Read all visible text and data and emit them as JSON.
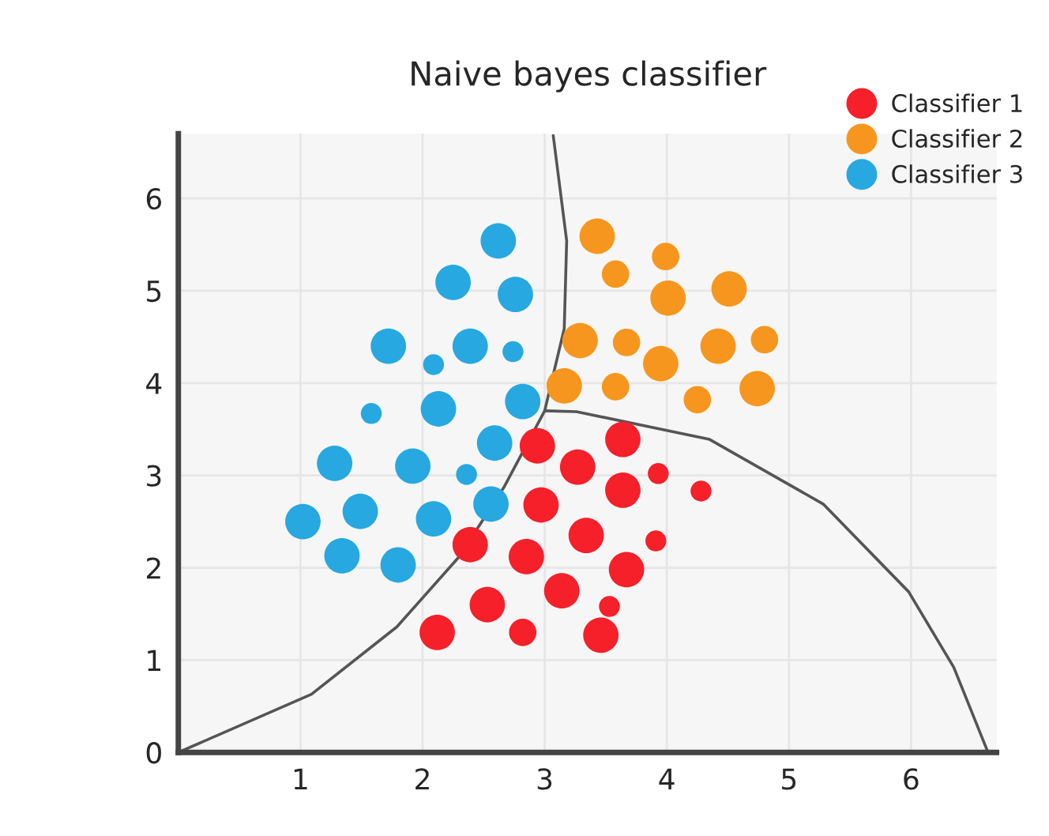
{
  "chart_data": {
    "type": "bubble",
    "title": "Naive bayes classifier",
    "xlim": [
      0,
      6.7
    ],
    "ylim": [
      0,
      6.7
    ],
    "xticks": [
      1,
      2,
      3,
      4,
      5,
      6
    ],
    "yticks": [
      {
        "value": 0,
        "label": "0"
      },
      1,
      2,
      3,
      4,
      5,
      6
    ],
    "grid": true,
    "legend": "top right",
    "marker": "circle",
    "series": [
      {
        "name": "Classifier 1",
        "color": "#f5202a",
        "x": [
          3.64,
          2.94,
          3.27,
          3.93,
          3.64,
          4.28,
          2.97,
          2.39,
          3.34,
          3.91,
          2.85,
          3.67,
          3.14,
          2.53,
          3.53,
          2.12,
          2.82,
          3.46
        ],
        "values": [
          3.39,
          3.32,
          3.09,
          3.02,
          2.84,
          2.83,
          2.68,
          2.25,
          2.35,
          2.29,
          2.12,
          1.98,
          1.75,
          1.6,
          1.58,
          1.3,
          1.3,
          1.27
        ],
        "sizes": [
          1,
          1,
          1,
          0.35,
          1,
          0.35,
          1,
          1,
          1,
          0.35,
          1,
          1,
          1,
          1,
          0.35,
          1,
          0.6,
          1
        ]
      },
      {
        "name": "Classifier 2",
        "color": "#f7961e",
        "x": [
          3.43,
          3.58,
          3.99,
          4.01,
          4.51,
          3.29,
          3.67,
          4.42,
          4.8,
          3.95,
          3.16,
          3.58,
          4.25,
          4.74
        ],
        "values": [
          5.59,
          5.18,
          5.37,
          4.92,
          5.02,
          4.46,
          4.44,
          4.4,
          4.47,
          4.21,
          3.97,
          3.96,
          3.82,
          3.94
        ],
        "sizes": [
          1,
          0.6,
          0.6,
          1,
          1,
          1,
          0.6,
          1,
          0.6,
          1,
          1,
          0.6,
          0.6,
          1
        ]
      },
      {
        "name": "Classifier 3",
        "color": "#27a8e0",
        "x": [
          2.62,
          2.25,
          2.76,
          1.72,
          2.39,
          2.74,
          2.09,
          2.13,
          2.82,
          1.58,
          2.59,
          1.28,
          1.92,
          2.36,
          1.49,
          2.09,
          2.56,
          1.02,
          1.34,
          1.8
        ],
        "values": [
          5.54,
          5.09,
          4.96,
          4.4,
          4.4,
          4.34,
          4.2,
          3.72,
          3.8,
          3.67,
          3.35,
          3.13,
          3.1,
          3.01,
          2.61,
          2.53,
          2.69,
          2.5,
          2.13,
          2.03
        ],
        "sizes": [
          1,
          1,
          1,
          1,
          1,
          0.35,
          0.35,
          1,
          1,
          0.35,
          1,
          1,
          1,
          0.35,
          1,
          1,
          1,
          1,
          1,
          1
        ]
      },
      {
        "type": "line",
        "marker": "none",
        "color": "#555555",
        "x": [
          0,
          1.09,
          1.79,
          2.3,
          2.67,
          3.0,
          3.16,
          3.18,
          3.07
        ],
        "values": [
          0,
          0.63,
          1.36,
          2.12,
          2.88,
          3.7,
          4.59,
          5.54,
          6.68
        ]
      },
      {
        "type": "line",
        "marker": "none",
        "color": "#555555",
        "x": [
          3.0,
          3.26,
          4.35,
          5.28,
          5.98,
          6.35,
          6.63
        ],
        "values": [
          3.7,
          3.69,
          3.39,
          2.69,
          1.74,
          0.92,
          0
        ]
      }
    ]
  }
}
